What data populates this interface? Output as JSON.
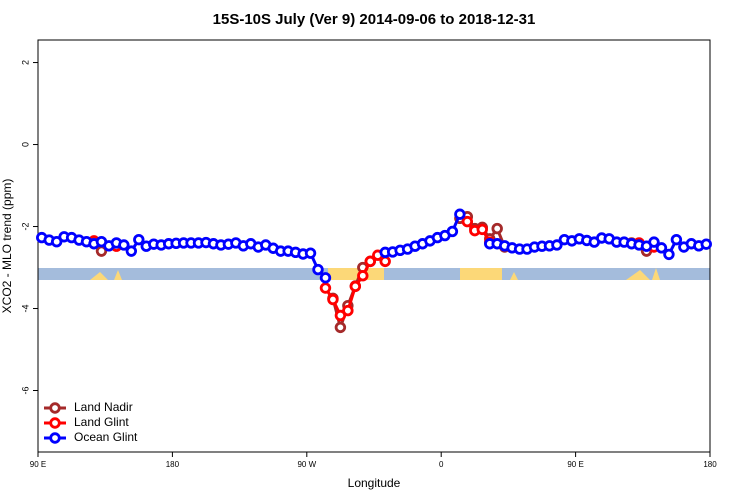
{
  "chart_data": {
    "type": "line",
    "title": "15S-10S July (Ver 9)   2014-09-06 to 2018-12-31",
    "xlabel": "Longitude",
    "ylabel": "XCO2 - MLO trend (ppm)",
    "x": [
      92.5,
      97.5,
      102.5,
      107.5,
      112.5,
      117.5,
      122.5,
      127.5,
      132.5,
      137.5,
      142.5,
      147.5,
      152.5,
      157.5,
      162.5,
      167.5,
      172.5,
      177.5,
      182.5,
      187.5,
      192.5,
      197.5,
      202.5,
      207.5,
      212.5,
      217.5,
      222.5,
      227.5,
      232.5,
      237.5,
      242.5,
      247.5,
      252.5,
      257.5,
      262.5,
      267.5,
      272.5,
      277.5,
      282.5,
      287.5,
      292.5,
      297.5,
      302.5,
      307.5,
      312.5,
      317.5,
      322.5,
      327.5,
      332.5,
      337.5,
      342.5,
      347.5,
      352.5,
      357.5,
      362.5,
      367.5,
      372.5,
      377.5,
      382.5,
      387.5,
      392.5,
      397.5,
      402.5,
      407.5,
      412.5,
      417.5,
      422.5,
      427.5,
      432.5,
      437.5,
      442.5,
      447.5,
      452.5,
      457.5,
      462.5,
      467.5,
      472.5,
      477.5,
      482.5,
      487.5,
      492.5,
      497.5,
      502.5,
      507.5,
      512.5,
      517.5,
      522.5,
      527.5,
      532.5,
      537.5
    ],
    "series": [
      {
        "name": "Land Nadir",
        "color": "#a52a2a",
        "values": [
          null,
          null,
          null,
          null,
          null,
          null,
          null,
          null,
          -2.6,
          null,
          null,
          null,
          null,
          null,
          null,
          null,
          null,
          null,
          null,
          null,
          null,
          null,
          null,
          null,
          null,
          null,
          null,
          null,
          null,
          null,
          null,
          null,
          null,
          null,
          null,
          null,
          null,
          null,
          null,
          -3.75,
          -4.46,
          -3.93,
          -3.45,
          -3.0,
          -2.85,
          null,
          null,
          null,
          null,
          null,
          null,
          null,
          null,
          null,
          null,
          null,
          -1.8,
          -1.76,
          -2.05,
          -2.02,
          -2.3,
          -2.05,
          -2.5,
          null,
          null,
          null,
          null,
          null,
          null,
          null,
          null,
          null,
          null,
          null,
          null,
          null,
          null,
          null,
          null,
          -2.4,
          null,
          -2.6,
          null,
          null,
          null,
          null,
          null,
          null,
          null,
          null
        ]
      },
      {
        "name": "Land Glint",
        "color": "#ff0000",
        "values": [
          null,
          null,
          null,
          null,
          null,
          null,
          null,
          -2.35,
          null,
          null,
          -2.48,
          null,
          null,
          null,
          null,
          null,
          null,
          null,
          null,
          null,
          null,
          null,
          null,
          null,
          null,
          null,
          null,
          null,
          null,
          null,
          null,
          null,
          null,
          null,
          null,
          null,
          null,
          null,
          -3.5,
          -3.78,
          -4.17,
          -4.05,
          -3.46,
          -3.2,
          -2.85,
          -2.7,
          -2.85,
          null,
          null,
          null,
          null,
          null,
          null,
          null,
          null,
          null,
          null,
          -1.88,
          -2.1,
          -2.07,
          -2.38,
          null,
          null,
          null,
          null,
          null,
          null,
          null,
          null,
          null,
          null,
          null,
          null,
          null,
          null,
          null,
          null,
          null,
          null,
          null,
          -2.4,
          null,
          -2.5,
          null,
          null,
          null,
          null,
          null,
          null,
          null
        ]
      },
      {
        "name": "Ocean Glint",
        "color": "#0000ff",
        "values": [
          -2.27,
          -2.33,
          -2.37,
          -2.25,
          -2.27,
          -2.33,
          -2.37,
          -2.42,
          -2.37,
          -2.47,
          -2.4,
          -2.45,
          -2.6,
          -2.32,
          -2.48,
          -2.43,
          -2.45,
          -2.42,
          -2.41,
          -2.4,
          -2.4,
          -2.4,
          -2.39,
          -2.42,
          -2.45,
          -2.43,
          -2.4,
          -2.47,
          -2.42,
          -2.5,
          -2.45,
          -2.53,
          -2.6,
          -2.6,
          -2.63,
          -2.67,
          -2.65,
          -3.05,
          -3.25,
          null,
          null,
          null,
          null,
          null,
          null,
          null,
          -2.63,
          -2.62,
          -2.58,
          -2.55,
          -2.48,
          -2.42,
          -2.35,
          -2.27,
          -2.22,
          -2.12,
          -1.7,
          null,
          null,
          null,
          -2.42,
          -2.42,
          -2.47,
          -2.52,
          -2.55,
          -2.55,
          -2.5,
          -2.48,
          -2.47,
          -2.45,
          -2.32,
          -2.35,
          -2.3,
          -2.34,
          -2.38,
          -2.28,
          -2.3,
          -2.38,
          -2.38,
          -2.42,
          -2.45,
          -2.48,
          -2.38,
          -2.52,
          -2.68,
          -2.32,
          -2.5,
          -2.42,
          -2.47,
          -2.43
        ]
      }
    ],
    "xlim": [
      90,
      540
    ],
    "xticks": [
      {
        "value": 90,
        "label": "90 E"
      },
      {
        "value": 180,
        "label": "180"
      },
      {
        "value": 270,
        "label": "90 W"
      },
      {
        "value": 360,
        "label": "0"
      },
      {
        "value": 450,
        "label": "90 E"
      },
      {
        "value": 540,
        "label": "180"
      }
    ],
    "ylim": [
      -7.5,
      2.55
    ],
    "yticks": [
      2,
      0,
      -2,
      -4,
      -6
    ],
    "legend": "bottom-left"
  }
}
